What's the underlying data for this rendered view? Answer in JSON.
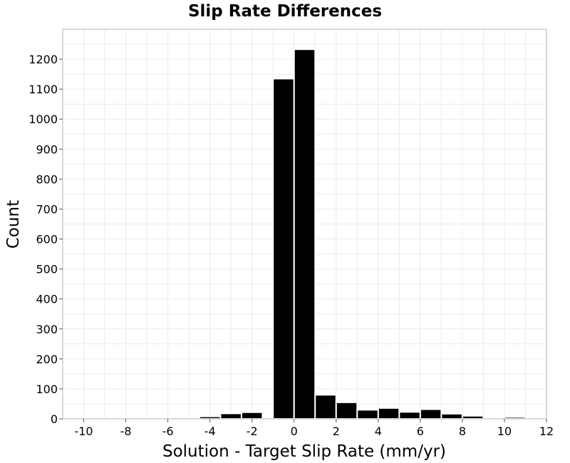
{
  "chart_data": {
    "type": "bar",
    "title": "Slip Rate Differences",
    "xlabel": "Solution - Target Slip Rate (mm/yr)",
    "ylabel": "Count",
    "xlim": [
      -11,
      12
    ],
    "ylim": [
      0,
      1300
    ],
    "x_ticks": [
      -10,
      -8,
      -6,
      -4,
      -2,
      0,
      2,
      4,
      6,
      8,
      10,
      12
    ],
    "y_ticks": [
      0,
      100,
      200,
      300,
      400,
      500,
      600,
      700,
      800,
      900,
      1000,
      1100,
      1200
    ],
    "grid": true,
    "bin_width": 1,
    "bins": [
      {
        "center": -4,
        "value": 8
      },
      {
        "center": -3,
        "value": 18
      },
      {
        "center": -2,
        "value": 22
      },
      {
        "center": -1,
        "value": 0
      },
      {
        "center": -0.5,
        "value": 1135
      },
      {
        "center": 0.5,
        "value": 1233
      },
      {
        "center": 1.5,
        "value": 80
      },
      {
        "center": 2.5,
        "value": 55
      },
      {
        "center": 3.5,
        "value": 30
      },
      {
        "center": 4.5,
        "value": 36
      },
      {
        "center": 5.5,
        "value": 23
      },
      {
        "center": 6.5,
        "value": 32
      },
      {
        "center": 7.5,
        "value": 17
      },
      {
        "center": 8.5,
        "value": 10
      },
      {
        "center": 9.5,
        "value": 4
      },
      {
        "center": 10.5,
        "value": 6
      }
    ],
    "bar_color": "#000000",
    "edge_color": "#ffffff"
  }
}
